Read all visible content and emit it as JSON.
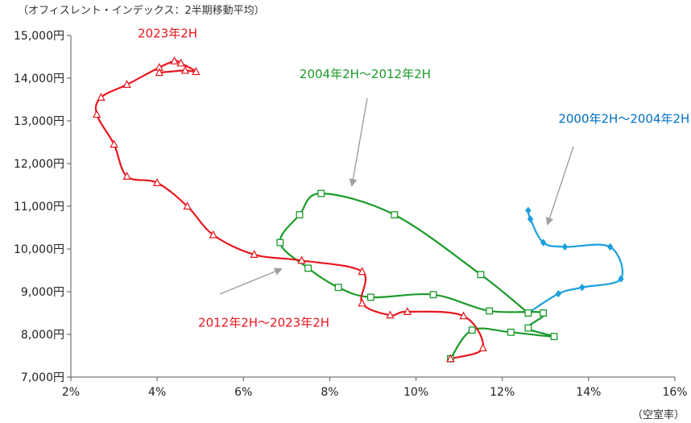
{
  "chart_data": {
    "type": "scatter",
    "title": "（オフィスレント・インデックス：2半期移動平均）",
    "xlabel": "（空室率）",
    "ylabel": "",
    "xlim": [
      2,
      16
    ],
    "ylim": [
      7000,
      15000
    ],
    "x_ticks": [
      2,
      4,
      6,
      8,
      10,
      12,
      14,
      16
    ],
    "x_tick_labels": [
      "2%",
      "4%",
      "6%",
      "8%",
      "10%",
      "12%",
      "14%",
      "16%"
    ],
    "y_ticks": [
      7000,
      8000,
      9000,
      10000,
      11000,
      12000,
      13000,
      14000,
      15000
    ],
    "y_tick_labels": [
      "7,000円",
      "8,000円",
      "9,000円",
      "10,000円",
      "11,000円",
      "12,000円",
      "13,000円",
      "14,000円",
      "15,000円"
    ],
    "grid": false,
    "series": [
      {
        "name": "2000年2H～2004年2H",
        "color": "#1a9fdc",
        "marker": "diamond",
        "points": [
          [
            12.6,
            10900
          ],
          [
            12.65,
            10700
          ],
          [
            12.95,
            10150
          ],
          [
            13.45,
            10050
          ],
          [
            14.5,
            10050
          ],
          [
            14.75,
            9300
          ],
          [
            13.85,
            9100
          ],
          [
            13.3,
            8950
          ],
          [
            12.6,
            8500
          ]
        ]
      },
      {
        "name": "2004年2H～2012年2H",
        "color": "#1a9b2a",
        "marker": "square",
        "points": [
          [
            12.6,
            8500
          ],
          [
            11.5,
            9400
          ],
          [
            9.5,
            10800
          ],
          [
            7.8,
            11300
          ],
          [
            7.3,
            10800
          ],
          [
            6.85,
            10150
          ],
          [
            7.5,
            9550
          ],
          [
            8.2,
            9100
          ],
          [
            8.95,
            8870
          ],
          [
            10.4,
            8930
          ],
          [
            11.7,
            8550
          ],
          [
            12.95,
            8500
          ],
          [
            12.6,
            8150
          ],
          [
            13.2,
            7950
          ],
          [
            12.2,
            8050
          ],
          [
            11.3,
            8100
          ],
          [
            10.8,
            7430
          ]
        ]
      },
      {
        "name": "2012年2H～2023年2H",
        "color": "#e8161e",
        "marker": "triangle",
        "points": [
          [
            10.8,
            7430
          ],
          [
            11.55,
            7680
          ],
          [
            11.1,
            8430
          ],
          [
            9.8,
            8530
          ],
          [
            9.4,
            8450
          ],
          [
            8.75,
            8730
          ],
          [
            8.75,
            9470
          ],
          [
            7.35,
            9730
          ],
          [
            6.25,
            9870
          ],
          [
            5.3,
            10330
          ],
          [
            4.7,
            11000
          ],
          [
            4.0,
            11550
          ],
          [
            3.3,
            11700
          ],
          [
            3.0,
            12450
          ],
          [
            2.6,
            13150
          ],
          [
            2.7,
            13550
          ],
          [
            3.3,
            13850
          ],
          [
            4.05,
            14250
          ],
          [
            4.4,
            14400
          ],
          [
            4.55,
            14350
          ],
          [
            4.9,
            14150
          ],
          [
            4.65,
            14180
          ],
          [
            4.05,
            14130
          ]
        ]
      }
    ],
    "annotations": [
      {
        "text": "2023年2H",
        "color": "#e8161e",
        "x": 3.55,
        "y": 14950
      },
      {
        "text": "2004年2H～2012年2H",
        "color": "#1a9b2a",
        "x": 7.3,
        "y": 14000
      },
      {
        "text": "2000年2H～2004年2H",
        "color": "#0070c0",
        "x": 13.3,
        "y": 12950
      },
      {
        "text": "2012年2H～2023年2H",
        "color": "#e8161e",
        "x": 4.95,
        "y": 8180
      }
    ]
  }
}
